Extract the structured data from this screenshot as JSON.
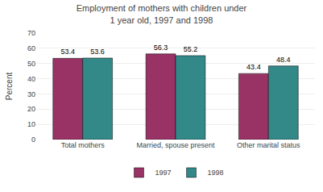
{
  "chart_data": {
    "type": "bar",
    "title": "Employment of mothers with children under\n1 year old, 1997 and 1998",
    "categories": [
      "Total mothers",
      "Married, spouse present",
      "Other marital status"
    ],
    "series": [
      {
        "name": "1997",
        "color": "#993366",
        "values": [
          53.4,
          56.3,
          43.4
        ]
      },
      {
        "name": "1998",
        "color": "#338888",
        "values": [
          53.6,
          55.2,
          48.4
        ]
      }
    ],
    "ylabel": "Percent",
    "ylim": [
      0,
      70
    ],
    "yticks": [
      0,
      10,
      20,
      30,
      40,
      50,
      60,
      70
    ],
    "grid": true,
    "legend": "bottom",
    "data_labels": true
  }
}
